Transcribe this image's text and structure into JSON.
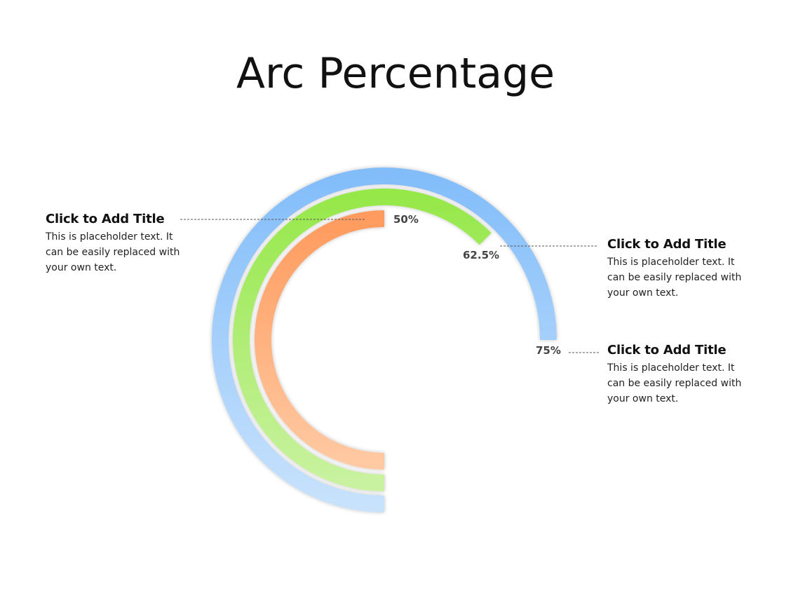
{
  "title": "Arc Percentage",
  "chart_data": {
    "type": "arc",
    "series": [
      {
        "value": 50,
        "label": "50%",
        "color_start": "#ff9b5e",
        "color_end": "#ffc9a2"
      },
      {
        "value": 62.5,
        "label": "62.5%",
        "color_start": "#96e84a",
        "color_end": "#c9f2a0"
      },
      {
        "value": 75,
        "label": "75%",
        "color_start": "#82bdfa",
        "color_end": "#c8e2fc"
      }
    ]
  },
  "callouts": [
    {
      "title": "Click to Add Title",
      "text": "This is placeholder text. It can be easily replaced with your own text."
    },
    {
      "title": "Click to Add Title",
      "text": "This is placeholder text. It can be easily replaced with your own text."
    },
    {
      "title": "Click to Add Title",
      "text": "This is placeholder text. It can be easily replaced with your own text."
    }
  ]
}
